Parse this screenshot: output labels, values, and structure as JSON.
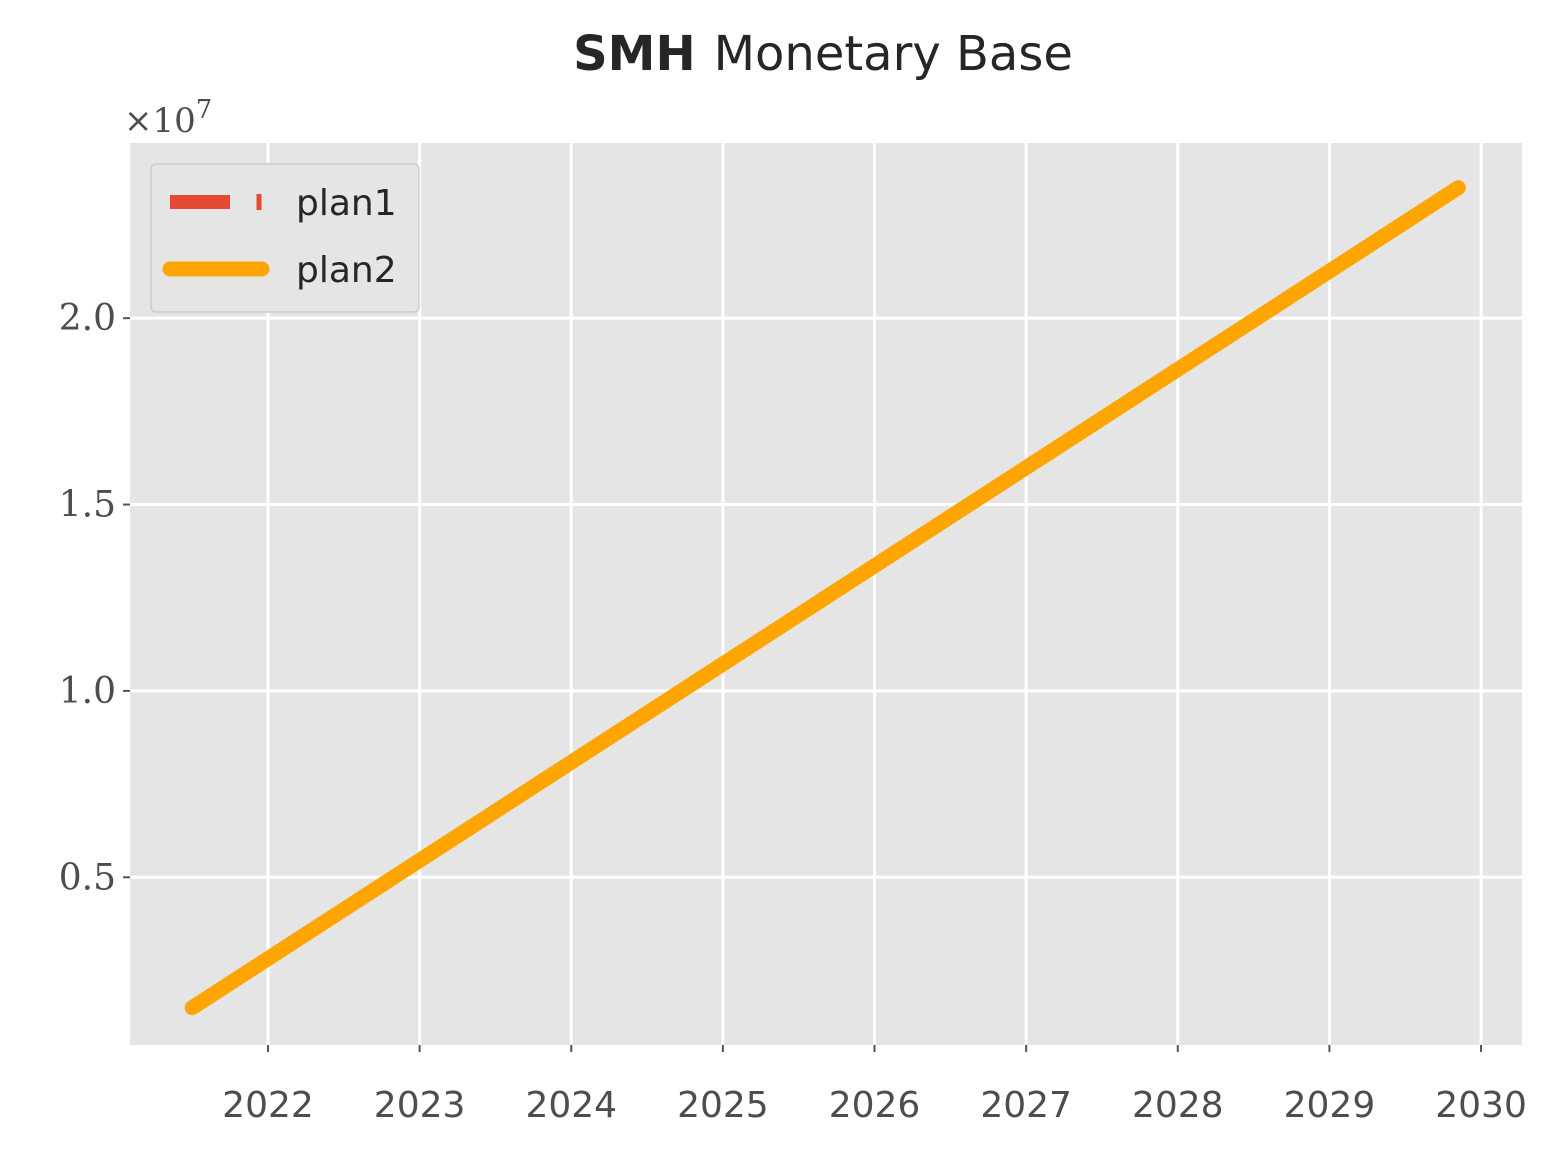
{
  "chart_data": {
    "type": "line",
    "title_bold": "SMH",
    "title_rest": "Monetary Base",
    "xlabel": "",
    "ylabel": "",
    "y_offset_label": "×10",
    "y_offset_exponent": "7",
    "x_ticks": [
      "2022",
      "2023",
      "2024",
      "2025",
      "2026",
      "2027",
      "2028",
      "2029",
      "2030"
    ],
    "y_ticks": [
      "0.5",
      "1.0",
      "1.5",
      "2.0"
    ],
    "xlim": [
      2021.09,
      2030.27
    ],
    "ylim": [
      0.05,
      2.47
    ],
    "y_multiplier": 10000000,
    "grid": true,
    "legend_position": "top-left",
    "series": [
      {
        "name": "plan1",
        "color": "#E24A33",
        "style": "dashed",
        "x": [
          2021.5,
          2029.85
        ],
        "y": [
          0.15,
          2.35
        ]
      },
      {
        "name": "plan2",
        "color": "#FFA500",
        "style": "solid",
        "x": [
          2021.5,
          2029.85
        ],
        "y": [
          0.15,
          2.35
        ]
      }
    ]
  }
}
